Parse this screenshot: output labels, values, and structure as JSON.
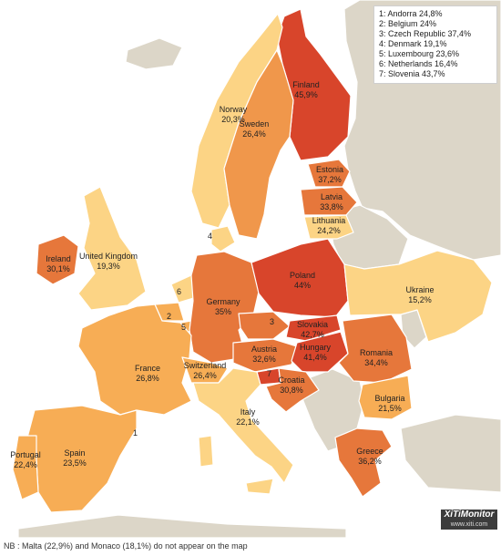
{
  "legend": [
    "1: Andorra 24,8%",
    "2: Belgium 24%",
    "3: Czech Republic 37,4%",
    "4: Denmark 19,1%",
    "5: Luxembourg 23,6%",
    "6: Netherlands 16,4%",
    "7: Slovenia 43,7%"
  ],
  "colors": {
    "nodata": "#dcd6c8",
    "low": "#fcd485",
    "mid_low": "#f7ad55",
    "mid": "#f0974b",
    "high": "#e6773b",
    "very_high": "#d8452b"
  },
  "countries": [
    {
      "name": "Finland",
      "value": "45,9%"
    },
    {
      "name": "Norway",
      "value": "20,3%"
    },
    {
      "name": "Sweden",
      "value": "26,4%"
    },
    {
      "name": "Estonia",
      "value": "37,2%"
    },
    {
      "name": "Latvia",
      "value": "33,8%"
    },
    {
      "name": "Lithuania",
      "value": "24,2%"
    },
    {
      "name": "Ireland",
      "value": "30,1%"
    },
    {
      "name": "United Kingdom",
      "value": "19,3%"
    },
    {
      "name": "Poland",
      "value": "44%"
    },
    {
      "name": "Ukraine",
      "value": "15,2%"
    },
    {
      "name": "Germany",
      "value": "35%"
    },
    {
      "name": "Slovakia",
      "value": "42,7%"
    },
    {
      "name": "Hungary",
      "value": "41,4%"
    },
    {
      "name": "Austria",
      "value": "32,6%"
    },
    {
      "name": "Romania",
      "value": "34,4%"
    },
    {
      "name": "France",
      "value": "26,8%"
    },
    {
      "name": "Switzerland",
      "value": "26,4%"
    },
    {
      "name": "Croatia",
      "value": "30,8%"
    },
    {
      "name": "Bulgaria",
      "value": "21,5%"
    },
    {
      "name": "Italy",
      "value": "22,1%"
    },
    {
      "name": "Portugal",
      "value": "22,4%"
    },
    {
      "name": "Spain",
      "value": "23,5%"
    },
    {
      "name": "Greece",
      "value": "36,2%"
    }
  ],
  "small_markers": [
    "1",
    "2",
    "3",
    "4",
    "5",
    "6",
    "7"
  ],
  "brand": {
    "name": "XiTiMonitor",
    "url": "www.xiti.com"
  },
  "footnote": "NB : Malta (22,9%) and Monaco (18,1%) do not appear on the map"
}
